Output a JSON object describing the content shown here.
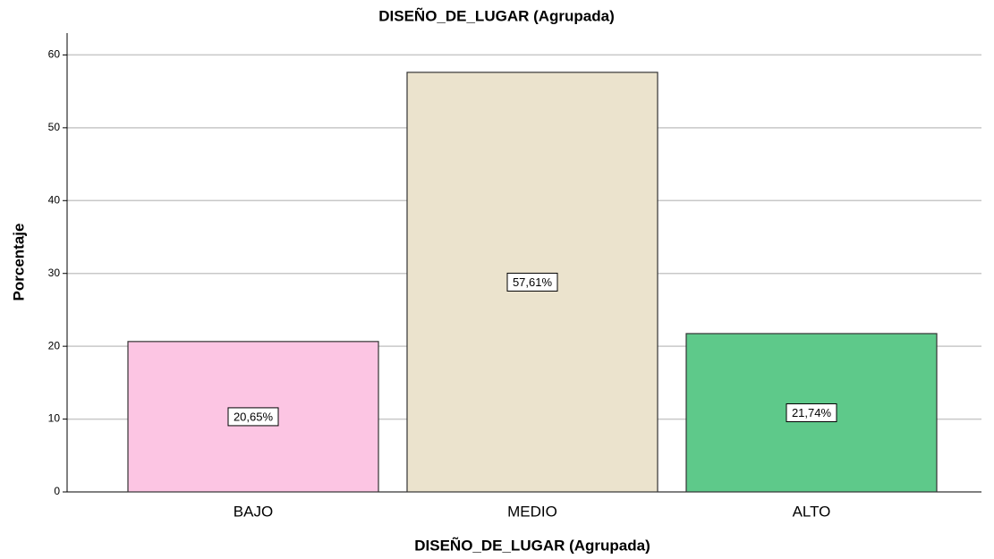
{
  "chart_data": {
    "type": "bar",
    "title": "DISEÑO_DE_LUGAR (Agrupada)",
    "x_label": "DISEÑO_DE_LUGAR (Agrupada)",
    "y_label": "Porcentaje",
    "categories": [
      "BAJO",
      "MEDIO",
      "ALTO"
    ],
    "values": [
      20.65,
      57.61,
      21.74
    ],
    "value_labels": [
      "20,65%",
      "57,61%",
      "21,74%"
    ],
    "colors": [
      "#fcc5e3",
      "#ebe3cd",
      "#5ec98a"
    ],
    "ylim": [
      0,
      63
    ],
    "yticks": [
      0,
      10,
      20,
      30,
      40,
      50,
      60
    ],
    "grid": true
  }
}
